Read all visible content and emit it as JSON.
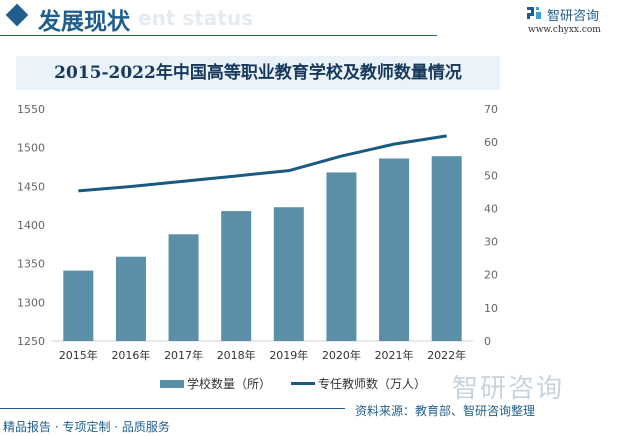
{
  "header": {
    "title": "发展现状",
    "ghost_subtitle": "ent status",
    "logo_name": "智研咨询",
    "logo_url": "www.chyxx.com"
  },
  "chart_data": {
    "type": "bar+line",
    "title": "2015-2022年中国高等职业教育学校及教师数量情况",
    "categories": [
      "2015年",
      "2016年",
      "2017年",
      "2018年",
      "2019年",
      "2020年",
      "2021年",
      "2022年"
    ],
    "series": [
      {
        "name": "学校数量（所）",
        "type": "bar",
        "axis": "left",
        "color": "#5b8fa8",
        "values": [
          1341,
          1359,
          1388,
          1418,
          1423,
          1468,
          1486,
          1489
        ]
      },
      {
        "name": "专任教师数（万人）",
        "type": "line",
        "axis": "right",
        "color": "#1b5a80",
        "values": [
          45.3,
          46.6,
          48.2,
          49.8,
          51.4,
          55.8,
          59.4,
          61.9
        ]
      }
    ],
    "y_left": {
      "lim": [
        1250,
        1550
      ],
      "ticks": [
        "1250",
        "1300",
        "1350",
        "1400",
        "1450",
        "1500",
        "1550"
      ]
    },
    "y_right": {
      "lim": [
        0,
        70
      ],
      "ticks": [
        "0",
        "10",
        "20",
        "30",
        "40",
        "50",
        "60",
        "70"
      ]
    },
    "grid": false,
    "legend": "bottom"
  },
  "watermark": "智研咨询",
  "source": "资料来源：教育部、智研咨询整理",
  "footer": "精品报告 · 专项定制 · 品质服务"
}
